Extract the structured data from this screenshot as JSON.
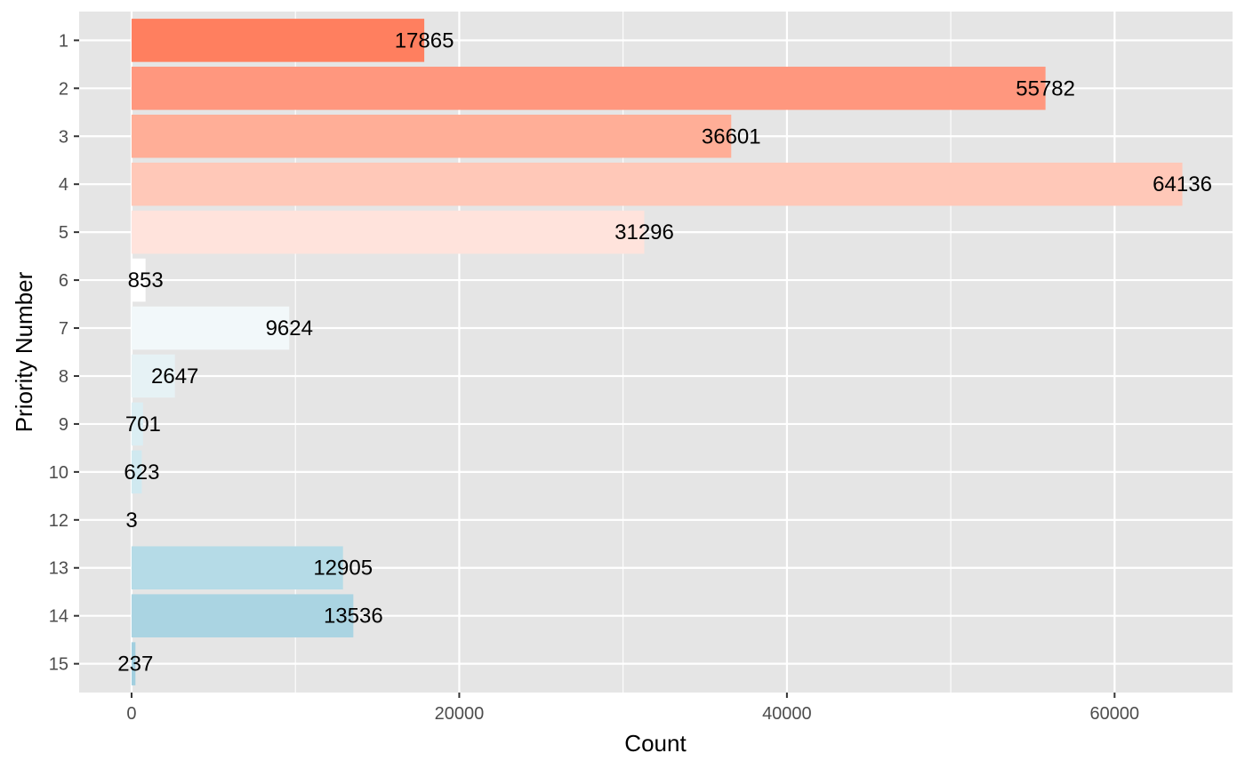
{
  "chart_data": {
    "type": "bar",
    "orientation": "horizontal",
    "xlabel": "Count",
    "ylabel": "Priority Number",
    "xlim": [
      -3200,
      67200
    ],
    "xticks": [
      0,
      20000,
      40000,
      60000
    ],
    "xtick_labels": [
      "0",
      "20000",
      "40000",
      "60000"
    ],
    "grid": true,
    "categories": [
      "1",
      "2",
      "3",
      "4",
      "5",
      "6",
      "7",
      "8",
      "9",
      "10",
      "12",
      "13",
      "14",
      "15"
    ],
    "values": [
      17865,
      55782,
      36601,
      64136,
      31296,
      853,
      9624,
      2647,
      701,
      623,
      3,
      12905,
      13536,
      237
    ],
    "data_labels": [
      "17865",
      "55782",
      "36601",
      "64136",
      "31296",
      "853",
      "9624",
      "2647",
      "701",
      "623",
      "3",
      "12905",
      "13536",
      "237"
    ],
    "bar_colors": [
      "#ff7f5f",
      "#ff977e",
      "#ffae97",
      "#ffc8b8",
      "#ffe3dc",
      "#ffffff",
      "#f2f8fa",
      "#e6f2f5",
      "#dbeef3",
      "#d0e9f0",
      "#ffffff",
      "#b5dbe7",
      "#aad4e2",
      "#a2cfdf"
    ],
    "panel_color": "#e5e5e5",
    "grid_color": "#ffffff"
  }
}
